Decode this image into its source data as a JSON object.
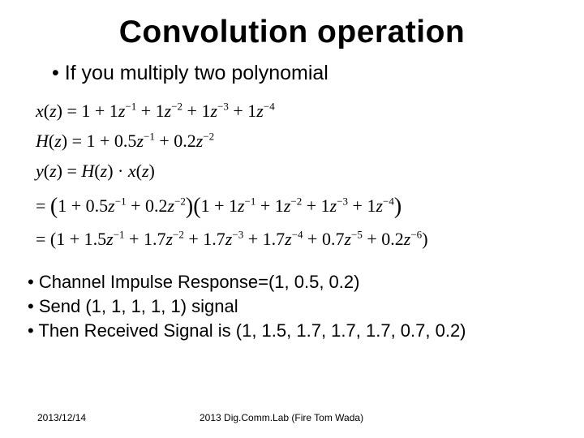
{
  "title": "Convolution operation",
  "bullet_main": "If you multiply two polynomial",
  "math": {
    "xz_lhs": "x(z) = ",
    "xz_rhs": "1 + 1z⁻¹ + 1z⁻² + 1z⁻³ + 1z⁻⁴",
    "hz_lhs": "H(z) = ",
    "hz_rhs": "1 + 0.5z⁻¹ + 0.2z⁻²",
    "yz_line": "y(z) = H(z) · x(z)",
    "eq2_pre": "= ",
    "eq2_a": "1 + 0.5z⁻¹ + 0.2z⁻²",
    "eq2_b": "1 + 1z⁻¹ + 1z⁻² + 1z⁻³ + 1z⁻⁴",
    "eq3_pre": "= ",
    "eq3": "(1 + 1.5z⁻¹ + 1.7z⁻² + 1.7z⁻³ + 1.7z⁻⁴ + 0.7z⁻⁵ + 0.2z⁻⁶)"
  },
  "bullets_secondary": {
    "b1": "Channel Impulse Response=(1, 0.5, 0.2)",
    "b2": "Send (1, 1, 1, 1, 1) signal",
    "b3": "Then Received Signal is (1, 1.5, 1.7, 1.7, 1.7, 0.7, 0.2)"
  },
  "footer": {
    "date": "2013/12/14",
    "note": "2013 Dig.Comm.Lab (Fire Tom Wada)"
  }
}
